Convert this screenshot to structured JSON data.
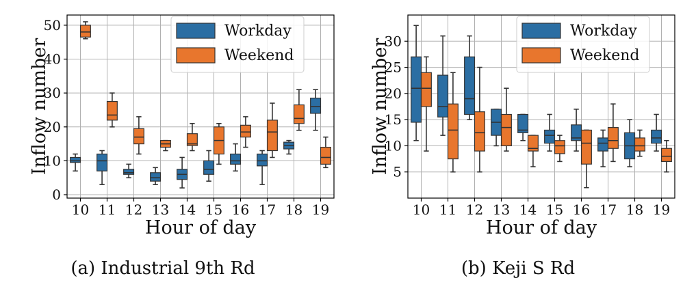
{
  "colors": {
    "workday": "#2b6ea3",
    "weekend": "#e8762d",
    "grid": "#b0b0b0",
    "whisker": "#333333"
  },
  "chart_data": [
    {
      "type": "box",
      "caption": "(a) Industrial 9th Rd",
      "xlabel": "Hour of day",
      "ylabel": "Inflow number",
      "ylim": [
        -1,
        53
      ],
      "yticks": [
        0,
        10,
        20,
        30,
        40,
        50
      ],
      "categories": [
        "10",
        "11",
        "12",
        "13",
        "14",
        "15",
        "16",
        "17",
        "18",
        "19"
      ],
      "grid": true,
      "legend": "top-right",
      "series": [
        {
          "name": "Workday",
          "color_key": "workday",
          "boxes": [
            {
              "min": 7,
              "q1": 9.5,
              "median": 10,
              "q3": 11,
              "max": 12
            },
            {
              "min": 3,
              "q1": 7,
              "median": 10,
              "q3": 12,
              "max": 13
            },
            {
              "min": 5,
              "q1": 6,
              "median": 6.5,
              "q3": 7.5,
              "max": 9
            },
            {
              "min": 3,
              "q1": 4,
              "median": 5,
              "q3": 6.5,
              "max": 8
            },
            {
              "min": 2,
              "q1": 4.5,
              "median": 6,
              "q3": 7.5,
              "max": 11
            },
            {
              "min": 4,
              "q1": 6,
              "median": 7.5,
              "q3": 10,
              "max": 13
            },
            {
              "min": 7,
              "q1": 9,
              "median": 10,
              "q3": 12,
              "max": 15
            },
            {
              "min": 3,
              "q1": 8.5,
              "median": 10,
              "q3": 12,
              "max": 13
            },
            {
              "min": 12,
              "q1": 13.5,
              "median": 14.5,
              "q3": 15.5,
              "max": 16
            },
            {
              "min": 19,
              "q1": 24,
              "median": 26,
              "q3": 28.5,
              "max": 31
            }
          ]
        },
        {
          "name": "Weekend",
          "color_key": "weekend",
          "boxes": [
            {
              "min": 46,
              "q1": 46.5,
              "median": 48,
              "q3": 50,
              "max": 51
            },
            {
              "min": 20,
              "q1": 22,
              "median": 23.5,
              "q3": 27.5,
              "max": 30
            },
            {
              "min": 12,
              "q1": 15,
              "median": 17,
              "q3": 19.5,
              "max": 23
            },
            {
              "min": 13,
              "q1": 14,
              "median": 15,
              "q3": 16,
              "max": 16
            },
            {
              "min": 13,
              "q1": 14.5,
              "median": 15,
              "q3": 18,
              "max": 21
            },
            {
              "min": 9,
              "q1": 12,
              "median": 16,
              "q3": 20,
              "max": 21
            },
            {
              "min": 14,
              "q1": 17,
              "median": 18.5,
              "q3": 20.5,
              "max": 23
            },
            {
              "min": 11,
              "q1": 13,
              "median": 18.5,
              "q3": 22,
              "max": 27
            },
            {
              "min": 19,
              "q1": 21,
              "median": 22.5,
              "q3": 26.5,
              "max": 31
            },
            {
              "min": 8,
              "q1": 9,
              "median": 11,
              "q3": 14,
              "max": 17
            }
          ]
        }
      ]
    },
    {
      "type": "box",
      "caption": "(b) Keji S Rd",
      "xlabel": "Hour of day",
      "ylabel": "Inflow number",
      "ylim": [
        0,
        35
      ],
      "yticks": [
        5,
        10,
        15,
        20,
        25,
        30
      ],
      "categories": [
        "10",
        "11",
        "12",
        "13",
        "14",
        "15",
        "16",
        "17",
        "18",
        "19"
      ],
      "grid": true,
      "legend": "top-right",
      "series": [
        {
          "name": "Workday",
          "color_key": "workday",
          "boxes": [
            {
              "min": 11,
              "q1": 14.5,
              "median": 21,
              "q3": 27,
              "max": 33
            },
            {
              "min": 12,
              "q1": 15.5,
              "median": 17.5,
              "q3": 23.5,
              "max": 31
            },
            {
              "min": 15,
              "q1": 16,
              "median": 19,
              "q3": 27,
              "max": 31
            },
            {
              "min": 10,
              "q1": 12,
              "median": 14.5,
              "q3": 17,
              "max": 17
            },
            {
              "min": 11,
              "q1": 12.5,
              "median": 13,
              "q3": 16,
              "max": 16
            },
            {
              "min": 9,
              "q1": 10.5,
              "median": 12,
              "q3": 13,
              "max": 16
            },
            {
              "min": 9,
              "q1": 11,
              "median": 11.5,
              "q3": 14,
              "max": 17
            },
            {
              "min": 6,
              "q1": 9,
              "median": 10.5,
              "q3": 11.5,
              "max": 13
            },
            {
              "min": 6,
              "q1": 7.5,
              "median": 10,
              "q3": 12.5,
              "max": 15
            },
            {
              "min": 9,
              "q1": 10.5,
              "median": 11.5,
              "q3": 13,
              "max": 16
            }
          ]
        },
        {
          "name": "Weekend",
          "color_key": "weekend",
          "boxes": [
            {
              "min": 9,
              "q1": 17.5,
              "median": 21,
              "q3": 24,
              "max": 27
            },
            {
              "min": 5,
              "q1": 7.5,
              "median": 13,
              "q3": 18,
              "max": 24
            },
            {
              "min": 5,
              "q1": 9,
              "median": 12.5,
              "q3": 16.5,
              "max": 25
            },
            {
              "min": 9,
              "q1": 10,
              "median": 13.5,
              "q3": 16,
              "max": 21
            },
            {
              "min": 6,
              "q1": 9,
              "median": 9.5,
              "q3": 12,
              "max": 12
            },
            {
              "min": 7,
              "q1": 8.5,
              "median": 10,
              "q3": 11,
              "max": 12
            },
            {
              "min": 2,
              "q1": 6.5,
              "median": 10.5,
              "q3": 13,
              "max": 13
            },
            {
              "min": 7,
              "q1": 9.5,
              "median": 11,
              "q3": 13.5,
              "max": 18
            },
            {
              "min": 8,
              "q1": 9,
              "median": 10,
              "q3": 11.5,
              "max": 13
            },
            {
              "min": 5,
              "q1": 7,
              "median": 8,
              "q3": 9.5,
              "max": 11
            }
          ]
        }
      ]
    }
  ]
}
